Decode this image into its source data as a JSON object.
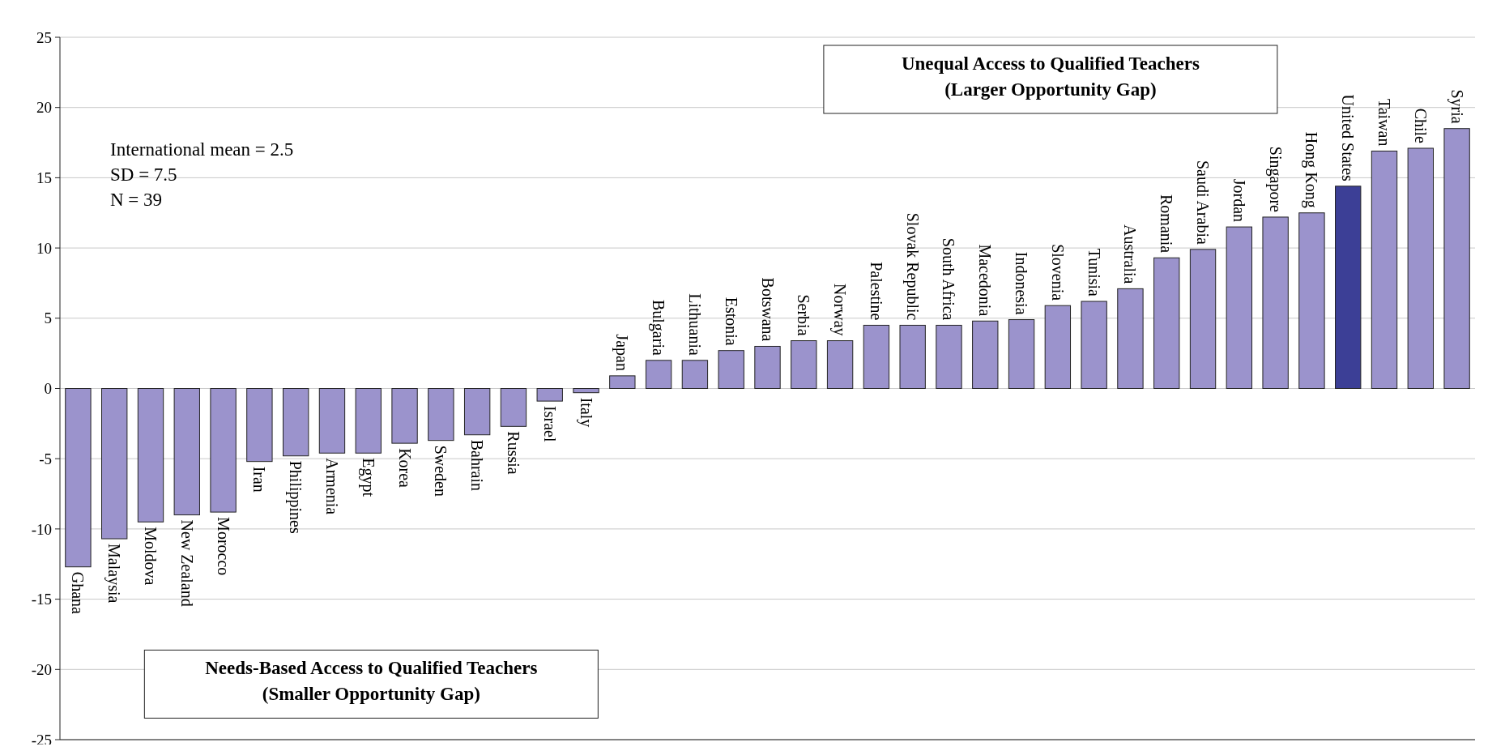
{
  "chart_data": {
    "type": "bar",
    "categories": [
      "Ghana",
      "Malaysia",
      "Moldova",
      "New Zealand",
      "Morocco",
      "Iran",
      "Philippines",
      "Armenia",
      "Egypt",
      "Korea",
      "Sweden",
      "Bahrain",
      "Russia",
      "Israel",
      "Italy",
      "Japan",
      "Bulgaria",
      "Lithuania",
      "Estonia",
      "Botswana",
      "Serbia",
      "Norway",
      "Palestine",
      "Slovak Republic",
      "South Africa",
      "Macedonia",
      "Indonesia",
      "Slovenia",
      "Tunisia",
      "Australia",
      "Romania",
      "Saudi Arabia",
      "Jordan",
      "Singapore",
      "Hong Kong",
      "United States",
      "Taiwan",
      "Chile",
      "Syria"
    ],
    "values": [
      -12.7,
      -10.7,
      -9.5,
      -9.0,
      -8.8,
      -5.2,
      -4.8,
      -4.6,
      -4.6,
      -3.9,
      -3.7,
      -3.3,
      -2.7,
      -0.9,
      -0.3,
      0.9,
      2.0,
      2.0,
      2.7,
      3.0,
      3.4,
      3.4,
      4.5,
      4.5,
      4.5,
      4.8,
      4.9,
      5.9,
      6.2,
      7.1,
      9.3,
      9.9,
      11.5,
      12.2,
      12.5,
      14.4,
      16.9,
      17.1,
      18.5
    ],
    "colors": [
      "#9b93cc",
      "#9b93cc",
      "#9b93cc",
      "#9b93cc",
      "#9b93cc",
      "#9b93cc",
      "#9b93cc",
      "#9b93cc",
      "#9b93cc",
      "#9b93cc",
      "#9b93cc",
      "#9b93cc",
      "#9b93cc",
      "#9b93cc",
      "#9b93cc",
      "#9b93cc",
      "#9b93cc",
      "#9b93cc",
      "#9b93cc",
      "#9b93cc",
      "#9b93cc",
      "#9b93cc",
      "#9b93cc",
      "#9b93cc",
      "#9b93cc",
      "#9b93cc",
      "#9b93cc",
      "#9b93cc",
      "#9b93cc",
      "#9b93cc",
      "#9b93cc",
      "#9b93cc",
      "#9b93cc",
      "#9b93cc",
      "#9b93cc",
      "#3c3f96",
      "#9b93cc",
      "#9b93cc",
      "#9b93cc"
    ],
    "ylim": [
      -25,
      25
    ],
    "yticks": [
      -25,
      -20,
      -15,
      -10,
      -5,
      0,
      5,
      10,
      15,
      20,
      25
    ],
    "grid": "y",
    "annotations": [
      "International mean = 2.5",
      "SD = 7.5",
      "N = 39",
      "Unequal Access to Qualified Teachers\n(Larger Opportunity Gap)",
      "Needs-Based Access to Qualified Teachers\n(Smaller Opportunity Gap)"
    ]
  }
}
